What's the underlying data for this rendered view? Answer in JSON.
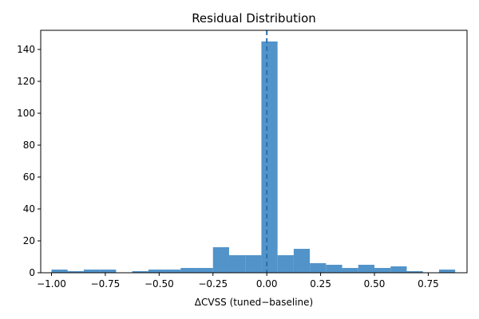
{
  "chart_data": {
    "type": "bar",
    "title": "Residual Distribution",
    "xlabel": "ΔCVSS (tuned−baseline)",
    "ylabel": "",
    "xlim": [
      -1.05,
      0.93
    ],
    "ylim": [
      0,
      152
    ],
    "x_ticks": [
      -1.0,
      -0.75,
      -0.5,
      -0.25,
      0.0,
      0.25,
      0.5,
      0.75
    ],
    "x_tick_labels": [
      "−1.00",
      "−0.75",
      "−0.50",
      "−0.25",
      "0.00",
      "0.25",
      "0.50",
      "0.75"
    ],
    "y_ticks": [
      0,
      20,
      40,
      60,
      80,
      100,
      120,
      140
    ],
    "y_tick_labels": [
      "0",
      "20",
      "40",
      "60",
      "80",
      "100",
      "120",
      "140"
    ],
    "bar_color": "#4C91C8",
    "reference_line": {
      "x": 0.0,
      "color": "#2A6FAE",
      "style": "dashed"
    },
    "bins": [
      {
        "x0": -1.0,
        "x1": -0.925,
        "count": 2
      },
      {
        "x0": -0.925,
        "x1": -0.85,
        "count": 1
      },
      {
        "x0": -0.85,
        "x1": -0.775,
        "count": 2
      },
      {
        "x0": -0.775,
        "x1": -0.7,
        "count": 2
      },
      {
        "x0": -0.7,
        "x1": -0.625,
        "count": 0
      },
      {
        "x0": -0.625,
        "x1": -0.55,
        "count": 1
      },
      {
        "x0": -0.55,
        "x1": -0.475,
        "count": 2
      },
      {
        "x0": -0.475,
        "x1": -0.4,
        "count": 2
      },
      {
        "x0": -0.4,
        "x1": -0.325,
        "count": 3
      },
      {
        "x0": -0.325,
        "x1": -0.25,
        "count": 3
      },
      {
        "x0": -0.25,
        "x1": -0.175,
        "count": 16
      },
      {
        "x0": -0.175,
        "x1": -0.1,
        "count": 11
      },
      {
        "x0": -0.1,
        "x1": -0.025,
        "count": 11
      },
      {
        "x0": -0.025,
        "x1": 0.05,
        "count": 145
      },
      {
        "x0": 0.05,
        "x1": 0.125,
        "count": 11
      },
      {
        "x0": 0.125,
        "x1": 0.2,
        "count": 15
      },
      {
        "x0": 0.2,
        "x1": 0.275,
        "count": 6
      },
      {
        "x0": 0.275,
        "x1": 0.35,
        "count": 5
      },
      {
        "x0": 0.35,
        "x1": 0.425,
        "count": 3
      },
      {
        "x0": 0.425,
        "x1": 0.5,
        "count": 5
      },
      {
        "x0": 0.5,
        "x1": 0.575,
        "count": 3
      },
      {
        "x0": 0.575,
        "x1": 0.65,
        "count": 4
      },
      {
        "x0": 0.65,
        "x1": 0.725,
        "count": 1
      },
      {
        "x0": 0.725,
        "x1": 0.8,
        "count": 0
      },
      {
        "x0": 0.8,
        "x1": 0.875,
        "count": 2
      }
    ]
  }
}
